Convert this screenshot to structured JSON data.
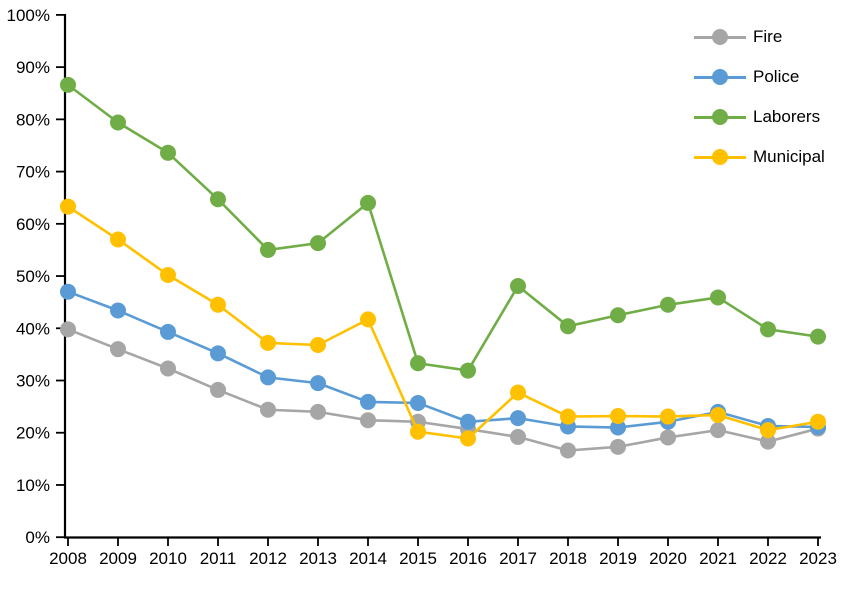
{
  "chart_data": {
    "type": "line",
    "title": "",
    "xlabel": "",
    "ylabel": "",
    "categories": [
      "2008",
      "2009",
      "2010",
      "2011",
      "2012",
      "2013",
      "2014",
      "2015",
      "2016",
      "2017",
      "2018",
      "2019",
      "2020",
      "2021",
      "2022",
      "2023"
    ],
    "series": [
      {
        "name": "Fire",
        "color": "#A6A6A6",
        "values": [
          39.8,
          36.0,
          32.3,
          28.2,
          24.4,
          24.0,
          22.4,
          22.1,
          20.7,
          19.2,
          16.6,
          17.3,
          19.1,
          20.5,
          18.3,
          20.8
        ]
      },
      {
        "name": "Police",
        "color": "#5B9BD5",
        "values": [
          47.0,
          43.4,
          39.3,
          35.2,
          30.6,
          29.5,
          25.9,
          25.7,
          22.1,
          22.8,
          21.2,
          21.0,
          22.1,
          24.0,
          21.3,
          21.1
        ]
      },
      {
        "name": "Laborers",
        "color": "#70AD47",
        "values": [
          86.6,
          79.4,
          73.6,
          64.7,
          55.0,
          56.3,
          64.0,
          33.3,
          31.9,
          48.1,
          40.4,
          42.5,
          44.5,
          45.9,
          39.8,
          38.4
        ]
      },
      {
        "name": "Municipal",
        "color": "#FFC000",
        "values": [
          63.3,
          57.0,
          50.2,
          44.5,
          37.2,
          36.8,
          41.7,
          20.2,
          18.9,
          27.7,
          23.1,
          23.2,
          23.1,
          23.4,
          20.5,
          22.1
        ]
      }
    ],
    "ylim": [
      0,
      100
    ],
    "ytick_step": 10,
    "ytick_labels": [
      "0%",
      "10%",
      "20%",
      "30%",
      "40%",
      "50%",
      "60%",
      "70%",
      "80%",
      "90%",
      "100%"
    ],
    "grid": false,
    "legend_position": "top-right",
    "axis_color": "#000000",
    "background": "#FFFFFF"
  }
}
